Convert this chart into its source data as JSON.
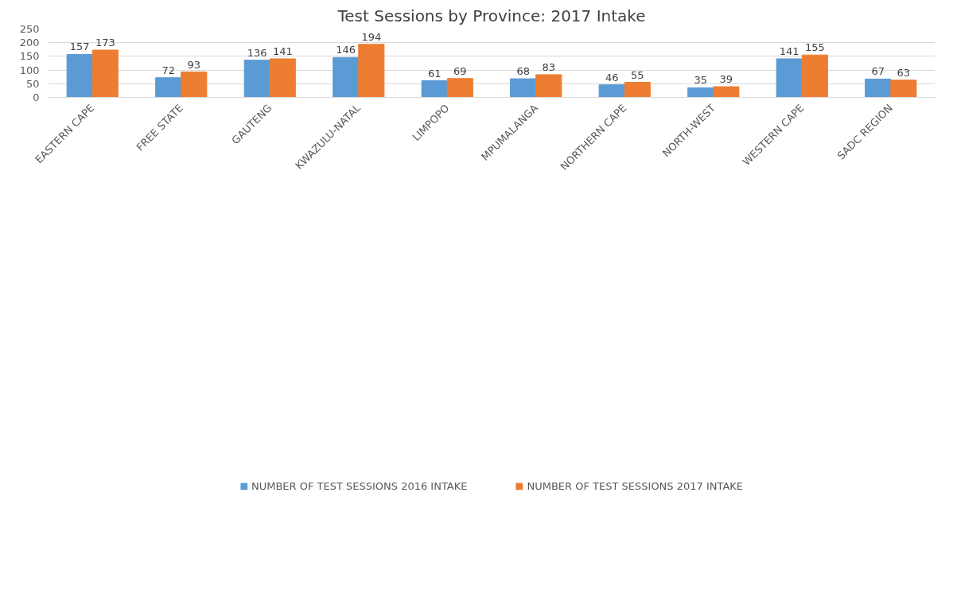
{
  "chart_data": {
    "type": "bar",
    "title": "Test Sessions by Province: 2017 Intake",
    "categories": [
      "EASTERN CAPE",
      "FREE STATE",
      "GAUTENG",
      "KWAZULU-NATAL",
      "LIMPOPO",
      "MPUMALANGA",
      "NORTHERN CAPE",
      "NORTH-WEST",
      "WESTERN CAPE",
      "SADC REGION"
    ],
    "series": [
      {
        "name": "NUMBER OF TEST SESSIONS 2016 INTAKE",
        "color": "#5b9bd5",
        "values": [
          157,
          72,
          136,
          146,
          61,
          68,
          46,
          35,
          141,
          67
        ]
      },
      {
        "name": "NUMBER OF TEST SESSIONS 2017 INTAKE",
        "color": "#ed7d31",
        "values": [
          173,
          93,
          141,
          194,
          69,
          83,
          55,
          39,
          155,
          63
        ]
      }
    ],
    "ylim": [
      0,
      250
    ],
    "yticks": [
      0,
      50,
      100,
      150,
      200,
      250
    ],
    "grid": "y",
    "legend": "bottom",
    "data_labels": true
  }
}
